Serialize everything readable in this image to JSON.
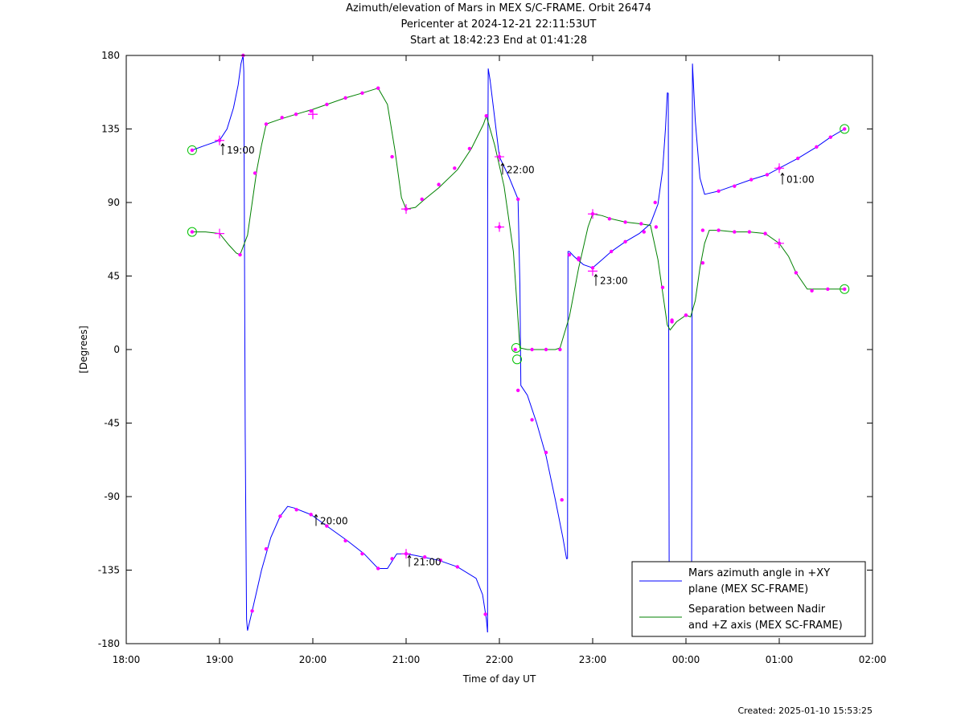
{
  "title_lines": [
    "Azimuth/elevation of Mars in MEX S/C-FRAME.  Orbit 26474",
    "Pericenter at 2024-12-21 22:11:53UT",
    "Start at 18:42:23 End at 01:41:28"
  ],
  "footer": "Created: 2025-01-10 15:53:25",
  "chart_data": {
    "type": "line",
    "xlabel": "Time of day UT",
    "ylabel": "[Degrees]",
    "x_unit": "hours since 18:00 UT",
    "xlim": [
      0,
      8
    ],
    "ylim": [
      -180,
      180
    ],
    "x_ticks": [
      {
        "v": 0,
        "label": "18:00"
      },
      {
        "v": 1,
        "label": "19:00"
      },
      {
        "v": 2,
        "label": "20:00"
      },
      {
        "v": 3,
        "label": "21:00"
      },
      {
        "v": 4,
        "label": "22:00"
      },
      {
        "v": 5,
        "label": "23:00"
      },
      {
        "v": 6,
        "label": "00:00"
      },
      {
        "v": 7,
        "label": "01:00"
      },
      {
        "v": 8,
        "label": "02:00"
      }
    ],
    "y_ticks": [
      {
        "v": 180,
        "label": "180"
      },
      {
        "v": 135,
        "label": "135"
      },
      {
        "v": 90,
        "label": "90"
      },
      {
        "v": 45,
        "label": "45"
      },
      {
        "v": 0,
        "label": "0"
      },
      {
        "v": -45,
        "label": "-45"
      },
      {
        "v": -90,
        "label": "-90"
      },
      {
        "v": -135,
        "label": "-135"
      },
      {
        "v": -180,
        "label": "-180"
      }
    ],
    "series": [
      {
        "name": "Mars azimuth angle in +XY plane (MEX SC-FRAME)",
        "legend_lines": [
          "Mars azimuth angle in +XY",
          "plane (MEX SC-FRAME)"
        ],
        "color": "#0000ff",
        "segments": [
          [
            [
              0.706,
              122
            ],
            [
              0.85,
              125
            ],
            [
              1.0,
              128
            ],
            [
              1.08,
              135
            ],
            [
              1.15,
              148
            ],
            [
              1.2,
              162
            ],
            [
              1.23,
              175
            ],
            [
              1.253,
              180
            ]
          ],
          [
            [
              1.253,
              180
            ],
            [
              1.26,
              170
            ],
            [
              1.275,
              -50
            ],
            [
              1.29,
              -165
            ],
            [
              1.3,
              -172
            ],
            [
              1.35,
              -160
            ],
            [
              1.45,
              -135
            ],
            [
              1.55,
              -115
            ],
            [
              1.65,
              -102
            ],
            [
              1.73,
              -96
            ],
            [
              1.8,
              -97
            ],
            [
              1.98,
              -101
            ],
            [
              2.15,
              -108
            ],
            [
              2.37,
              -117
            ],
            [
              2.55,
              -125
            ],
            [
              2.7,
              -134
            ],
            [
              2.8,
              -134
            ],
            [
              2.9,
              -125
            ],
            [
              3.0,
              -125
            ],
            [
              3.1,
              -126
            ],
            [
              3.35,
              -129
            ],
            [
              3.55,
              -133
            ],
            [
              3.75,
              -140
            ],
            [
              3.82,
              -150
            ],
            [
              3.86,
              -165
            ],
            [
              3.873,
              -173
            ]
          ],
          [
            [
              3.873,
              -173
            ],
            [
              3.874,
              90
            ],
            [
              3.88,
              172
            ],
            [
              3.9,
              165
            ],
            [
              4.0,
              118
            ],
            [
              4.1,
              106
            ],
            [
              4.2,
              92
            ],
            [
              4.22,
              40
            ],
            [
              4.23,
              -22
            ],
            [
              4.3,
              -28
            ],
            [
              4.4,
              -45
            ],
            [
              4.5,
              -65
            ],
            [
              4.6,
              -92
            ],
            [
              4.68,
              -115
            ],
            [
              4.72,
              -128
            ],
            [
              4.73,
              -128
            ]
          ],
          [
            [
              4.73,
              -128
            ],
            [
              4.735,
              60
            ],
            [
              4.75,
              60
            ],
            [
              4.8,
              57
            ],
            [
              4.9,
              52
            ],
            [
              5.0,
              50
            ],
            [
              5.1,
              55
            ],
            [
              5.2,
              60
            ],
            [
              5.35,
              66
            ],
            [
              5.5,
              71
            ],
            [
              5.62,
              77
            ],
            [
              5.7,
              89
            ],
            [
              5.75,
              110
            ],
            [
              5.78,
              135
            ],
            [
              5.8,
              157
            ],
            [
              5.81,
              157
            ]
          ],
          [
            [
              5.81,
              157
            ],
            [
              5.82,
              -130
            ],
            [
              5.83,
              -150
            ]
          ],
          [
            [
              6.06,
              -150
            ],
            [
              6.07,
              175
            ],
            [
              6.1,
              140
            ],
            [
              6.15,
              105
            ],
            [
              6.2,
              95
            ],
            [
              6.35,
              97
            ],
            [
              6.5,
              100
            ],
            [
              6.7,
              104
            ],
            [
              6.87,
              107
            ],
            [
              7.0,
              111
            ],
            [
              7.2,
              117
            ],
            [
              7.4,
              124
            ],
            [
              7.55,
              130
            ],
            [
              7.7,
              135
            ]
          ]
        ],
        "points": [
          [
            0.706,
            122
          ],
          [
            1.0,
            128
          ],
          [
            1.253,
            180
          ],
          [
            1.35,
            -160
          ],
          [
            1.5,
            -122
          ],
          [
            1.65,
            -102
          ],
          [
            1.825,
            -98
          ],
          [
            1.98,
            -101
          ],
          [
            2.15,
            -108
          ],
          [
            2.35,
            -117
          ],
          [
            2.53,
            -125
          ],
          [
            2.7,
            -134
          ],
          [
            2.85,
            -128
          ],
          [
            3.0,
            -125
          ],
          [
            3.2,
            -127
          ],
          [
            3.37,
            -129
          ],
          [
            3.55,
            -133
          ],
          [
            3.85,
            -162
          ],
          [
            4.0,
            118
          ],
          [
            4.2,
            92
          ],
          [
            4.2,
            -25
          ],
          [
            4.35,
            -43
          ],
          [
            4.5,
            -63
          ],
          [
            4.67,
            -92
          ],
          [
            4.75,
            58
          ],
          [
            4.85,
            55
          ],
          [
            5.0,
            50
          ],
          [
            5.2,
            60
          ],
          [
            5.35,
            66
          ],
          [
            5.55,
            72
          ],
          [
            5.67,
            90
          ],
          [
            5.75,
            38
          ],
          [
            5.85,
            17
          ],
          [
            6.0,
            21
          ],
          [
            6.18,
            53
          ],
          [
            6.35,
            97
          ],
          [
            6.52,
            100
          ],
          [
            6.7,
            104
          ],
          [
            6.87,
            107
          ],
          [
            7.0,
            111
          ],
          [
            7.2,
            117
          ],
          [
            7.4,
            124
          ],
          [
            7.55,
            130
          ],
          [
            7.7,
            135
          ]
        ],
        "crosses": [
          [
            1.0,
            128
          ],
          [
            2.0,
            144
          ],
          [
            3.0,
            -125
          ],
          [
            4.0,
            118
          ],
          [
            5.0,
            48
          ],
          [
            7.0,
            111
          ]
        ],
        "circles": [
          [
            0.706,
            122
          ],
          [
            7.7,
            135
          ],
          [
            4.18,
            1
          ]
        ]
      },
      {
        "name": "Separation between Nadir and +Z axis (MEX SC-FRAME)",
        "legend_lines": [
          "Separation between Nadir",
          "and +Z axis (MEX SC-FRAME)"
        ],
        "color": "#008000",
        "segments": [
          [
            [
              0.706,
              72
            ],
            [
              0.85,
              72
            ],
            [
              1.0,
              71
            ],
            [
              1.1,
              64
            ],
            [
              1.18,
              59
            ],
            [
              1.22,
              58
            ],
            [
              1.3,
              70
            ],
            [
              1.35,
              90
            ],
            [
              1.4,
              110
            ],
            [
              1.45,
              125
            ],
            [
              1.5,
              138
            ],
            [
              1.65,
              141
            ],
            [
              1.82,
              144
            ],
            [
              2.0,
              147
            ],
            [
              2.15,
              150
            ],
            [
              2.35,
              154
            ],
            [
              2.53,
              157
            ],
            [
              2.7,
              160
            ],
            [
              2.8,
              150
            ],
            [
              2.88,
              122
            ],
            [
              2.95,
              93
            ],
            [
              3.0,
              86
            ],
            [
              3.1,
              87
            ],
            [
              3.2,
              92
            ],
            [
              3.35,
              99
            ],
            [
              3.55,
              110
            ],
            [
              3.7,
              123
            ],
            [
              3.83,
              138
            ],
            [
              3.86,
              143
            ],
            [
              3.95,
              125
            ],
            [
              4.05,
              100
            ],
            [
              4.15,
              60
            ],
            [
              4.2,
              18
            ],
            [
              4.22,
              1
            ],
            [
              4.3,
              0
            ],
            [
              4.45,
              0
            ],
            [
              4.6,
              0
            ],
            [
              4.65,
              1
            ],
            [
              4.75,
              20
            ],
            [
              4.85,
              50
            ],
            [
              4.95,
              75
            ],
            [
              5.0,
              83
            ],
            [
              5.1,
              82
            ],
            [
              5.2,
              80
            ],
            [
              5.35,
              78
            ],
            [
              5.5,
              77
            ],
            [
              5.62,
              76
            ],
            [
              5.7,
              55
            ],
            [
              5.75,
              35
            ],
            [
              5.8,
              15
            ],
            [
              5.83,
              12
            ],
            [
              5.9,
              17
            ],
            [
              6.0,
              21
            ],
            [
              6.05,
              20
            ],
            [
              6.1,
              30
            ],
            [
              6.15,
              50
            ],
            [
              6.2,
              65
            ],
            [
              6.25,
              73
            ],
            [
              6.35,
              73
            ],
            [
              6.52,
              72
            ],
            [
              6.68,
              72
            ],
            [
              6.85,
              71
            ],
            [
              7.0,
              65
            ],
            [
              7.1,
              57
            ],
            [
              7.18,
              47
            ],
            [
              7.3,
              37
            ],
            [
              7.5,
              37
            ],
            [
              7.7,
              37
            ]
          ]
        ],
        "points": [
          [
            0.706,
            72
          ],
          [
            1.22,
            58
          ],
          [
            1.38,
            108
          ],
          [
            1.5,
            138
          ],
          [
            1.67,
            142
          ],
          [
            1.82,
            144
          ],
          [
            1.98,
            146
          ],
          [
            2.15,
            150
          ],
          [
            2.35,
            154
          ],
          [
            2.53,
            157
          ],
          [
            2.7,
            160
          ],
          [
            2.85,
            118
          ],
          [
            3.0,
            86
          ],
          [
            3.17,
            92
          ],
          [
            3.35,
            101
          ],
          [
            3.52,
            111
          ],
          [
            3.68,
            123
          ],
          [
            3.86,
            143
          ],
          [
            4.0,
            75
          ],
          [
            4.17,
            0
          ],
          [
            4.35,
            0
          ],
          [
            4.5,
            0
          ],
          [
            4.65,
            0
          ],
          [
            4.85,
            56
          ],
          [
            5.0,
            83
          ],
          [
            5.18,
            80
          ],
          [
            5.35,
            78
          ],
          [
            5.52,
            77
          ],
          [
            5.68,
            75
          ],
          [
            5.85,
            18
          ],
          [
            6.0,
            21
          ],
          [
            6.18,
            73
          ],
          [
            6.35,
            73
          ],
          [
            6.52,
            72
          ],
          [
            6.68,
            72
          ],
          [
            6.85,
            71
          ],
          [
            7.0,
            65
          ],
          [
            7.18,
            47
          ],
          [
            7.35,
            36
          ],
          [
            7.52,
            37
          ],
          [
            7.7,
            37
          ]
        ],
        "crosses": [
          [
            1.0,
            71
          ],
          [
            2.0,
            144
          ],
          [
            3.0,
            86
          ],
          [
            4.0,
            75
          ],
          [
            5.0,
            83
          ],
          [
            7.0,
            65
          ]
        ],
        "circles": [
          [
            0.706,
            72
          ],
          [
            7.7,
            37
          ],
          [
            4.19,
            -6
          ]
        ]
      }
    ],
    "annotations": [
      {
        "x": 1.0,
        "y": 122,
        "label": "19:00"
      },
      {
        "x": 2.0,
        "y": -105,
        "label": "20:00"
      },
      {
        "x": 3.0,
        "y": -130,
        "label": "21:00"
      },
      {
        "x": 4.0,
        "y": 110,
        "label": "22:00"
      },
      {
        "x": 5.0,
        "y": 42,
        "label": "23:00"
      },
      {
        "x": 7.0,
        "y": 104,
        "label": "01:00"
      }
    ]
  }
}
